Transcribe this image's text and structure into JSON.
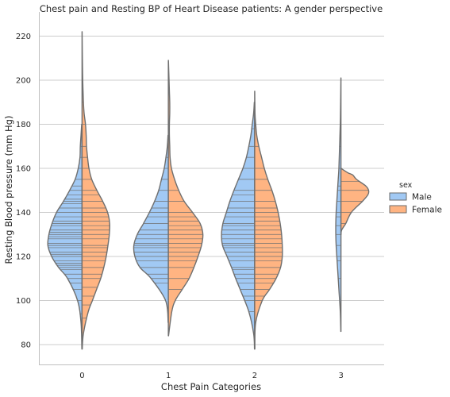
{
  "chart_data": {
    "type": "violin",
    "split": true,
    "inner": "stick",
    "title": "Chest pain and Resting BP of Heart Disease patients: A gender perspective",
    "xlabel": "Chest Pain Categories",
    "ylabel": "Resting Blood pressure (mm Hg)",
    "categories": [
      "0",
      "1",
      "2",
      "3"
    ],
    "yticks": [
      80,
      100,
      120,
      140,
      160,
      180,
      200,
      220
    ],
    "ylim": [
      71,
      231
    ],
    "grid": "horizontal",
    "legend": {
      "title": "sex",
      "placement": "right",
      "entries": [
        {
          "label": "Male",
          "color": "#a1c9f4"
        },
        {
          "label": "Female",
          "color": "#ffb482"
        }
      ]
    },
    "series": [
      {
        "name": "Male",
        "color": "#a1c9f4",
        "side": "left",
        "violins": [
          {
            "category": "0",
            "density": [
              [
                78,
                0.005
              ],
              [
                90,
                0.03
              ],
              [
                100,
                0.13
              ],
              [
                110,
                0.42
              ],
              [
                115,
                0.68
              ],
              [
                120,
                0.88
              ],
              [
                125,
                0.99
              ],
              [
                130,
                0.96
              ],
              [
                135,
                0.87
              ],
              [
                140,
                0.74
              ],
              [
                145,
                0.54
              ],
              [
                150,
                0.36
              ],
              [
                155,
                0.2
              ],
              [
                160,
                0.11
              ],
              [
                165,
                0.06
              ],
              [
                170,
                0.05
              ],
              [
                175,
                0.03
              ],
              [
                180,
                0.01
              ]
            ],
            "sticks": [
              94,
              100,
              105,
              108,
              110,
              112,
              114,
              115,
              116,
              117,
              118,
              120,
              121,
              122,
              124,
              125,
              126,
              128,
              129,
              130,
              131,
              132,
              134,
              135,
              136,
              138,
              140,
              142,
              144,
              145,
              146,
              148,
              150,
              152,
              155,
              160,
              165,
              170,
              174
            ]
          },
          {
            "category": "1",
            "density": [
              [
                90,
                0.005
              ],
              [
                100,
                0.08
              ],
              [
                110,
                0.5
              ],
              [
                115,
                0.82
              ],
              [
                120,
                0.97
              ],
              [
                125,
                1.0
              ],
              [
                130,
                0.9
              ],
              [
                135,
                0.72
              ],
              [
                140,
                0.55
              ],
              [
                145,
                0.4
              ],
              [
                150,
                0.28
              ],
              [
                155,
                0.2
              ],
              [
                160,
                0.12
              ],
              [
                165,
                0.07
              ],
              [
                170,
                0.03
              ],
              [
                175,
                0.01
              ]
            ],
            "sticks": [
              108,
              110,
              112,
              115,
              118,
              120,
              122,
              124,
              125,
              126,
              128,
              130,
              132,
              135,
              138,
              140,
              142,
              145,
              150,
              155,
              160,
              165
            ]
          },
          {
            "category": "2",
            "density": [
              [
                78,
                0.005
              ],
              [
                85,
                0.03
              ],
              [
                95,
                0.17
              ],
              [
                105,
                0.42
              ],
              [
                110,
                0.55
              ],
              [
                115,
                0.67
              ],
              [
                120,
                0.8
              ],
              [
                125,
                0.93
              ],
              [
                130,
                0.96
              ],
              [
                135,
                0.92
              ],
              [
                140,
                0.82
              ],
              [
                145,
                0.72
              ],
              [
                150,
                0.6
              ],
              [
                155,
                0.47
              ],
              [
                160,
                0.34
              ],
              [
                165,
                0.24
              ],
              [
                170,
                0.17
              ],
              [
                175,
                0.11
              ],
              [
                180,
                0.07
              ],
              [
                185,
                0.03
              ],
              [
                190,
                0.01
              ]
            ],
            "sticks": [
              95,
              100,
              102,
              105,
              108,
              110,
              112,
              114,
              115,
              118,
              120,
              122,
              124,
              125,
              126,
              128,
              130,
              132,
              134,
              135,
              138,
              140,
              142,
              145,
              148,
              150,
              155,
              160,
              165,
              170,
              178
            ]
          },
          {
            "category": "3",
            "density": [
              [
                86,
                0.005
              ],
              [
                95,
                0.02
              ],
              [
                105,
                0.06
              ],
              [
                115,
                0.1
              ],
              [
                120,
                0.12
              ],
              [
                125,
                0.14
              ],
              [
                130,
                0.15
              ],
              [
                135,
                0.15
              ],
              [
                140,
                0.14
              ],
              [
                145,
                0.12
              ],
              [
                150,
                0.1
              ],
              [
                155,
                0.08
              ],
              [
                160,
                0.06
              ],
              [
                170,
                0.04
              ],
              [
                180,
                0.02
              ],
              [
                190,
                0.01
              ],
              [
                201,
                0.002
              ]
            ],
            "sticks": [
              110,
              118,
              120,
              125,
              130,
              134,
              138,
              140,
              145,
              150,
              152,
              160,
              170
            ]
          }
        ]
      },
      {
        "name": "Female",
        "color": "#ffb482",
        "side": "right",
        "violins": [
          {
            "category": "0",
            "density": [
              [
                78,
                0.005
              ],
              [
                85,
                0.04
              ],
              [
                95,
                0.18
              ],
              [
                100,
                0.3
              ],
              [
                105,
                0.42
              ],
              [
                110,
                0.54
              ],
              [
                115,
                0.63
              ],
              [
                120,
                0.7
              ],
              [
                125,
                0.75
              ],
              [
                130,
                0.79
              ],
              [
                135,
                0.8
              ],
              [
                140,
                0.74
              ],
              [
                145,
                0.6
              ],
              [
                150,
                0.43
              ],
              [
                155,
                0.28
              ],
              [
                160,
                0.2
              ],
              [
                165,
                0.16
              ],
              [
                170,
                0.13
              ],
              [
                175,
                0.12
              ],
              [
                180,
                0.1
              ],
              [
                185,
                0.06
              ],
              [
                190,
                0.04
              ],
              [
                200,
                0.02
              ],
              [
                210,
                0.01
              ],
              [
                222,
                0.002
              ]
            ],
            "sticks": [
              92,
              98,
              102,
              106,
              110,
              112,
              115,
              118,
              120,
              122,
              124,
              125,
              128,
              130,
              132,
              134,
              136,
              138,
              140,
              142,
              145,
              148,
              150,
              155,
              160,
              165,
              170,
              180,
              190,
              200
            ]
          },
          {
            "category": "1",
            "density": [
              [
                84,
                0.005
              ],
              [
                95,
                0.1
              ],
              [
                100,
                0.2
              ],
              [
                105,
                0.4
              ],
              [
                110,
                0.6
              ],
              [
                115,
                0.74
              ],
              [
                120,
                0.86
              ],
              [
                125,
                0.96
              ],
              [
                130,
                1.0
              ],
              [
                135,
                0.92
              ],
              [
                140,
                0.7
              ],
              [
                145,
                0.46
              ],
              [
                150,
                0.3
              ],
              [
                155,
                0.18
              ],
              [
                160,
                0.09
              ],
              [
                165,
                0.05
              ],
              [
                170,
                0.04
              ],
              [
                175,
                0.03
              ],
              [
                180,
                0.03
              ],
              [
                185,
                0.04
              ],
              [
                190,
                0.04
              ],
              [
                195,
                0.03
              ],
              [
                200,
                0.02
              ],
              [
                209,
                0.002
              ]
            ],
            "sticks": [
              105,
              110,
              115,
              118,
              120,
              122,
              124,
              126,
              128,
              130,
              132,
              134,
              136,
              138,
              140,
              145,
              150
            ]
          },
          {
            "category": "2",
            "density": [
              [
                78,
                0.005
              ],
              [
                90,
                0.03
              ],
              [
                100,
                0.22
              ],
              [
                105,
                0.43
              ],
              [
                110,
                0.62
              ],
              [
                115,
                0.75
              ],
              [
                120,
                0.8
              ],
              [
                125,
                0.8
              ],
              [
                130,
                0.78
              ],
              [
                135,
                0.74
              ],
              [
                140,
                0.68
              ],
              [
                145,
                0.6
              ],
              [
                150,
                0.5
              ],
              [
                155,
                0.38
              ],
              [
                160,
                0.28
              ],
              [
                165,
                0.2
              ],
              [
                170,
                0.12
              ],
              [
                175,
                0.06
              ],
              [
                180,
                0.03
              ],
              [
                185,
                0.01
              ],
              [
                195,
                0.002
              ]
            ],
            "sticks": [
              100,
              102,
              105,
              108,
              110,
              112,
              115,
              118,
              120,
              122,
              124,
              126,
              128,
              130,
              132,
              134,
              136,
              138,
              140,
              142,
              145,
              150,
              155,
              160,
              170
            ]
          },
          {
            "category": "3",
            "density": [
              [
                130,
                0.002
              ],
              [
                132,
                0.02
              ],
              [
                135,
                0.14
              ],
              [
                140,
                0.3
              ],
              [
                145,
                0.62
              ],
              [
                148,
                0.78
              ],
              [
                150,
                0.8
              ],
              [
                152,
                0.72
              ],
              [
                155,
                0.45
              ],
              [
                157,
                0.34
              ],
              [
                158,
                0.2
              ],
              [
                160,
                0.002
              ]
            ],
            "sticks": [
              135,
              140,
              145,
              150,
              154
            ]
          }
        ]
      }
    ]
  }
}
